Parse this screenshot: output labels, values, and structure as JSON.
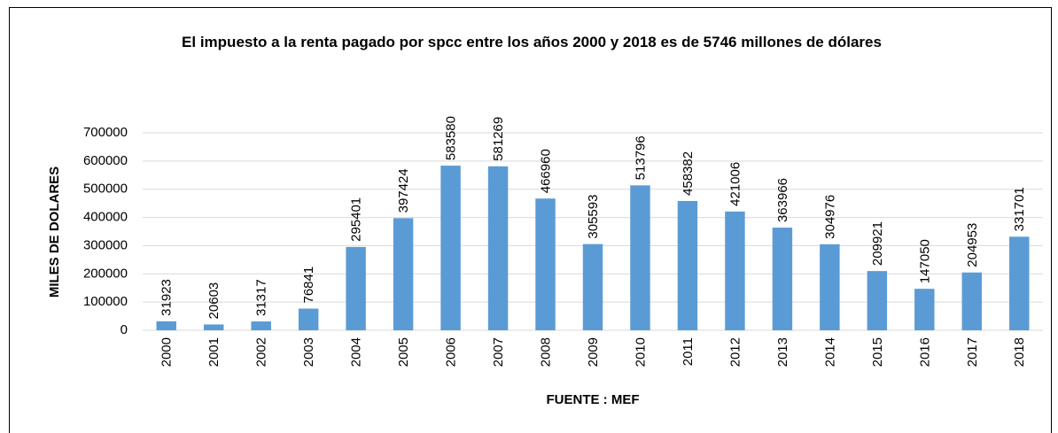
{
  "chart_data": {
    "type": "bar",
    "title": "El impuesto a la renta pagado por spcc entre los años 2000 y 2018 es de 5746 millones de dólares",
    "x_label": "FUENTE : MEF",
    "y_label": "MILES DE DOLARES",
    "categories": [
      "2000",
      "2001",
      "2002",
      "2003",
      "2004",
      "2005",
      "2006",
      "2007",
      "2008",
      "2009",
      "2010",
      "2011",
      "2012",
      "2013",
      "2014",
      "2015",
      "2016",
      "2017",
      "2018"
    ],
    "values": [
      31923,
      20603,
      31317,
      76841,
      295401,
      397424,
      583580,
      581269,
      466960,
      305593,
      513796,
      458382,
      421006,
      363966,
      304976,
      209921,
      147050,
      204953,
      331701
    ],
    "color": "#5b9bd5",
    "ylim": [
      0,
      700000
    ],
    "yticks": [
      0,
      100000,
      200000,
      300000,
      400000,
      500000,
      600000,
      700000
    ],
    "grid": true
  }
}
